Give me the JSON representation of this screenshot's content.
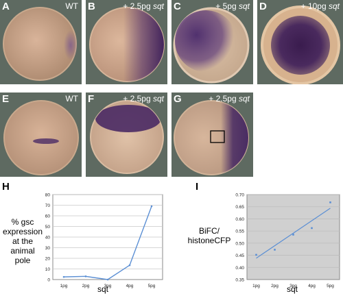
{
  "panels": [
    {
      "id": "A",
      "caption_text": "WT",
      "caption_italic": ""
    },
    {
      "id": "B",
      "caption_text": "+ 2.5pg ",
      "caption_italic": "sqt"
    },
    {
      "id": "C",
      "caption_text": "+ 5pg ",
      "caption_italic": "sqt"
    },
    {
      "id": "D",
      "caption_text": "+ 10pg ",
      "caption_italic": "sqt"
    },
    {
      "id": "E",
      "caption_text": "WT",
      "caption_italic": ""
    },
    {
      "id": "F",
      "caption_text": "+ 2.5pg ",
      "caption_italic": "sqt"
    },
    {
      "id": "G",
      "caption_text": "+ 2.5pg ",
      "caption_italic": "sqt"
    }
  ],
  "chart_data": [
    {
      "label": "H",
      "type": "line",
      "categories": [
        "1pg",
        "2pg",
        "3pg",
        "4pg",
        "5pg"
      ],
      "values": [
        2.5,
        3,
        0,
        13.5,
        69
      ],
      "xlabel": "sqt",
      "ylabel": "% gsc expression at the animal pole",
      "ylabel_lines": [
        "% gsc",
        "expression",
        "at the",
        "animal",
        "pole"
      ],
      "ylim": [
        0,
        80
      ],
      "yticks": [
        "0",
        "10",
        "20",
        "30",
        "40",
        "50",
        "60",
        "70",
        "80"
      ],
      "grid": true,
      "color": "#5b8fd4"
    },
    {
      "label": "I",
      "type": "scatter",
      "categories": [
        "1pg",
        "2pg",
        "3pg",
        "4pg",
        "5pg"
      ],
      "values": [
        0.452,
        0.473,
        0.535,
        0.562,
        0.668
      ],
      "trendline": [
        0.438,
        0.644
      ],
      "xlabel": "sqt",
      "ylabel": "BiFC/ histoneCFP",
      "ylabel_lines": [
        "BiFC/",
        "histoneCFP"
      ],
      "ylim": [
        0.35,
        0.7
      ],
      "yticks": [
        "0.35",
        "0.40",
        "0.45",
        "0.50",
        "0.55",
        "0.60",
        "0.65",
        "0.70"
      ],
      "grid": true,
      "color": "#5b8fd4"
    }
  ]
}
